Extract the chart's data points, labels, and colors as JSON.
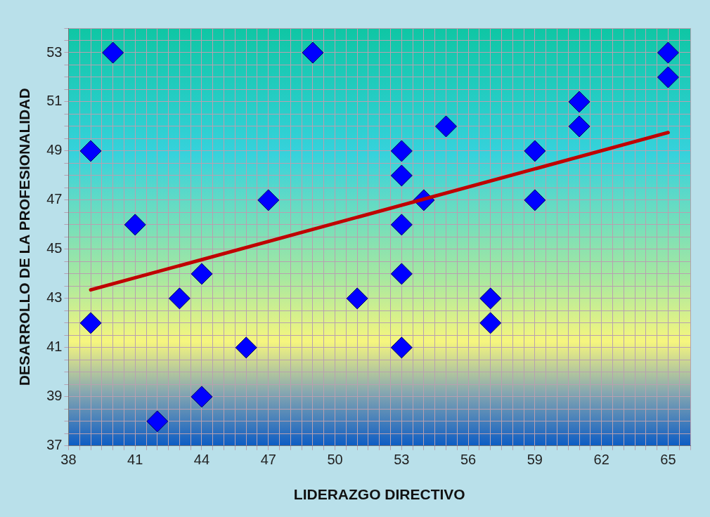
{
  "chart_data": {
    "type": "scatter",
    "xlabel": "LIDERAZGO DIRECTIVO",
    "ylabel": "DESARROLLO DE LA PROFESIONALIDAD",
    "xlim": [
      38,
      66
    ],
    "ylim": [
      37,
      54
    ],
    "xticks": [
      38,
      {
        "value": 38.5,
        "label": null
      },
      {
        "value": 39,
        "label": null
      },
      {
        "value": 39.5,
        "label": null
      },
      {
        "value": 40,
        "label": null
      },
      {
        "value": 40.5,
        "label": null
      },
      41,
      {
        "value": 41.5,
        "label": null
      },
      {
        "value": 42,
        "label": null
      },
      {
        "value": 42.5,
        "label": null
      },
      {
        "value": 43,
        "label": null
      },
      {
        "value": 43.5,
        "label": null
      },
      44,
      {
        "value": 44.5,
        "label": null
      },
      {
        "value": 45,
        "label": null
      },
      {
        "value": 45.5,
        "label": null
      },
      {
        "value": 46,
        "label": null
      },
      {
        "value": 46.5,
        "label": null
      },
      47,
      {
        "value": 47.5,
        "label": null
      },
      {
        "value": 48,
        "label": null
      },
      {
        "value": 48.5,
        "label": null
      },
      {
        "value": 49,
        "label": null
      },
      {
        "value": 49.5,
        "label": null
      },
      50,
      {
        "value": 50.5,
        "label": null
      },
      {
        "value": 51,
        "label": null
      },
      {
        "value": 51.5,
        "label": null
      },
      {
        "value": 52,
        "label": null
      },
      {
        "value": 52.5,
        "label": null
      },
      53,
      {
        "value": 53.5,
        "label": null
      },
      {
        "value": 54,
        "label": null
      },
      {
        "value": 54.5,
        "label": null
      },
      {
        "value": 55,
        "label": null
      },
      {
        "value": 55.5,
        "label": null
      },
      56,
      {
        "value": 56.5,
        "label": null
      },
      {
        "value": 57,
        "label": null
      },
      {
        "value": 57.5,
        "label": null
      },
      {
        "value": 58,
        "label": null
      },
      {
        "value": 58.5,
        "label": null
      },
      59,
      {
        "value": 59.5,
        "label": null
      },
      {
        "value": 60,
        "label": null
      },
      {
        "value": 60.5,
        "label": null
      },
      {
        "value": 61,
        "label": null
      },
      {
        "value": 61.5,
        "label": null
      },
      62,
      {
        "value": 62.5,
        "label": null
      },
      {
        "value": 63,
        "label": null
      },
      {
        "value": 63.5,
        "label": null
      },
      {
        "value": 64,
        "label": null
      },
      {
        "value": 64.5,
        "label": null
      },
      65,
      {
        "value": 65.5,
        "label": null
      },
      {
        "value": 66,
        "label": null
      }
    ],
    "yticks": [
      37,
      {
        "value": 37.5,
        "label": null
      },
      {
        "value": 38,
        "label": null
      },
      {
        "value": 38.5,
        "label": null
      },
      39,
      {
        "value": 39.5,
        "label": null
      },
      {
        "value": 40,
        "label": null
      },
      {
        "value": 40.5,
        "label": null
      },
      41,
      {
        "value": 41.5,
        "label": null
      },
      {
        "value": 42,
        "label": null
      },
      {
        "value": 42.5,
        "label": null
      },
      43,
      {
        "value": 43.5,
        "label": null
      },
      {
        "value": 44,
        "label": null
      },
      {
        "value": 44.5,
        "label": null
      },
      45,
      {
        "value": 45.5,
        "label": null
      },
      {
        "value": 46,
        "label": null
      },
      {
        "value": 46.5,
        "label": null
      },
      47,
      {
        "value": 47.5,
        "label": null
      },
      {
        "value": 48,
        "label": null
      },
      {
        "value": 48.5,
        "label": null
      },
      49,
      {
        "value": 49.5,
        "label": null
      },
      {
        "value": 50,
        "label": null
      },
      {
        "value": 50.5,
        "label": null
      },
      51,
      {
        "value": 51.5,
        "label": null
      },
      {
        "value": 52,
        "label": null
      },
      {
        "value": 52.5,
        "label": null
      },
      53,
      {
        "value": 53.5,
        "label": null
      },
      {
        "value": 54,
        "label": null
      }
    ],
    "grid": true,
    "legend": false,
    "series": [
      {
        "type": "scatter",
        "marker": "diamond",
        "color": "#0000ff",
        "x": [
          39,
          39,
          40,
          41,
          42,
          43,
          44,
          44,
          46,
          47,
          49,
          51,
          53,
          53,
          53,
          53,
          53,
          54,
          55,
          57,
          57,
          59,
          59,
          61,
          61,
          65,
          65
        ],
        "values": [
          49,
          42,
          53,
          46,
          38,
          43,
          44,
          39,
          41,
          47,
          53,
          43,
          49,
          48,
          46,
          44,
          41,
          47,
          50,
          43,
          42,
          49,
          47,
          51,
          50,
          53,
          52
        ]
      },
      {
        "type": "line",
        "color": "#c00000",
        "x": [
          39,
          65
        ],
        "values": [
          43.35,
          49.75
        ]
      }
    ]
  }
}
